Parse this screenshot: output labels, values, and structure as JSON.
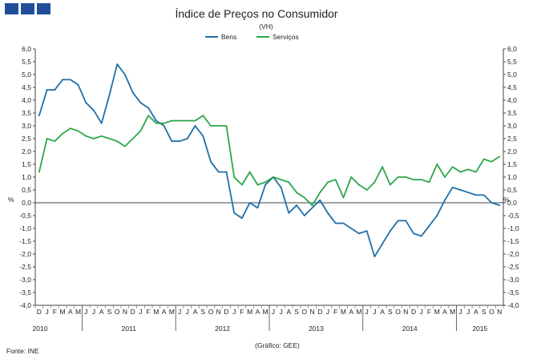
{
  "chart_data": {
    "type": "line",
    "title": "Índice de Preços no Consumidor",
    "subtitle": "(VH)",
    "ylabel_left": "%",
    "ylabel_right": "%",
    "ylim": [
      -4.0,
      6.0
    ],
    "yticks": [
      "6,0",
      "5,5",
      "5,0",
      "4,5",
      "4,0",
      "3,5",
      "3,0",
      "2,5",
      "2,0",
      "1,5",
      "1,0",
      "0,5",
      "0,0",
      "-0,5",
      "-1,0",
      "-1,5",
      "-2,0",
      "-2,5",
      "-3,0",
      "-3,5",
      "-4,0"
    ],
    "month_labels": [
      "D",
      "J",
      "F",
      "M",
      "A",
      "M",
      "J",
      "J",
      "A",
      "S",
      "O",
      "N",
      "D",
      "J",
      "F",
      "M",
      "A",
      "M",
      "J",
      "J",
      "A",
      "S",
      "O",
      "N",
      "D",
      "J",
      "F",
      "M",
      "A",
      "M",
      "J",
      "J",
      "A",
      "S",
      "O",
      "N",
      "D",
      "J",
      "F",
      "M",
      "A",
      "M",
      "J",
      "J",
      "A",
      "S",
      "O",
      "N",
      "D",
      "J",
      "F",
      "M",
      "A",
      "M",
      "J",
      "J",
      "A",
      "S",
      "O",
      "N"
    ],
    "year_labels": [
      {
        "label": "2010",
        "index": 0
      },
      {
        "label": "2011",
        "index": 6
      },
      {
        "label": "2012",
        "index": 18
      },
      {
        "label": "2013",
        "index": 30
      },
      {
        "label": "2014",
        "index": 42
      },
      {
        "label": "2015",
        "index": 54
      }
    ],
    "series": [
      {
        "name": "Bens",
        "color": "#1f6fa8",
        "values": [
          3.4,
          4.4,
          4.4,
          4.8,
          4.8,
          4.6,
          3.9,
          3.6,
          3.1,
          4.2,
          5.4,
          5.0,
          4.3,
          3.9,
          3.7,
          3.2,
          3.0,
          2.4,
          2.4,
          2.5,
          3.0,
          2.6,
          1.6,
          1.2,
          1.2,
          -0.4,
          -0.6,
          0.0,
          -0.2,
          0.7,
          1.0,
          0.6,
          -0.4,
          -0.1,
          -0.5,
          -0.2,
          0.1,
          -0.4,
          -0.8,
          -0.8,
          -1.0,
          -1.2,
          -1.1,
          -2.1,
          -1.6,
          -1.1,
          -0.7,
          -0.7,
          -1.2,
          -1.3,
          -0.9,
          -0.5,
          0.1,
          0.6,
          0.5,
          0.4,
          0.3,
          0.3,
          0.0,
          -0.1
        ]
      },
      {
        "name": "Serviços",
        "color": "#2ca64a",
        "values": [
          1.2,
          2.5,
          2.4,
          2.7,
          2.9,
          2.8,
          2.6,
          2.5,
          2.6,
          2.5,
          2.4,
          2.2,
          2.5,
          2.8,
          3.4,
          3.1,
          3.1,
          3.2,
          3.2,
          3.2,
          3.2,
          3.4,
          3.0,
          3.0,
          3.0,
          1.0,
          0.7,
          1.2,
          0.7,
          0.8,
          1.0,
          0.9,
          0.8,
          0.4,
          0.2,
          -0.1,
          0.4,
          0.8,
          0.9,
          0.2,
          1.0,
          0.7,
          0.5,
          0.8,
          1.4,
          0.7,
          1.0,
          1.0,
          0.9,
          0.9,
          0.8,
          1.5,
          1.0,
          1.4,
          1.2,
          1.3,
          1.2,
          1.7,
          1.6,
          1.8
        ]
      }
    ]
  },
  "footer": {
    "source": "Fonte: INE",
    "credit": "(Gráfico: GEE)"
  }
}
